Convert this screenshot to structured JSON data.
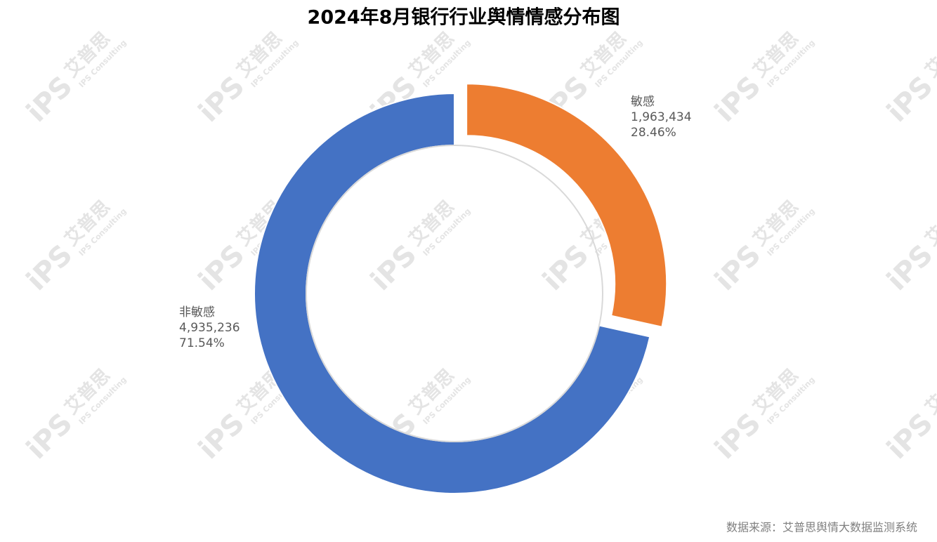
{
  "chart_data": {
    "type": "donut",
    "title": "2024年8月银行行业舆情情感分布图",
    "categories": [
      "敏感",
      "非敏感"
    ],
    "series": [
      {
        "values": [
          1963434,
          4935236
        ],
        "value_labels": [
          "1,963,434",
          "4,935,236"
        ]
      }
    ],
    "percent_labels": [
      "28.46%",
      "71.54%"
    ],
    "colors": [
      "#ed7d31",
      "#4472c4"
    ],
    "source": "数据来源：艾普思舆情大数据监测系统",
    "watermark": {
      "brand": "艾普思",
      "sub": "IPS Consulting",
      "logo": "iPS"
    }
  }
}
